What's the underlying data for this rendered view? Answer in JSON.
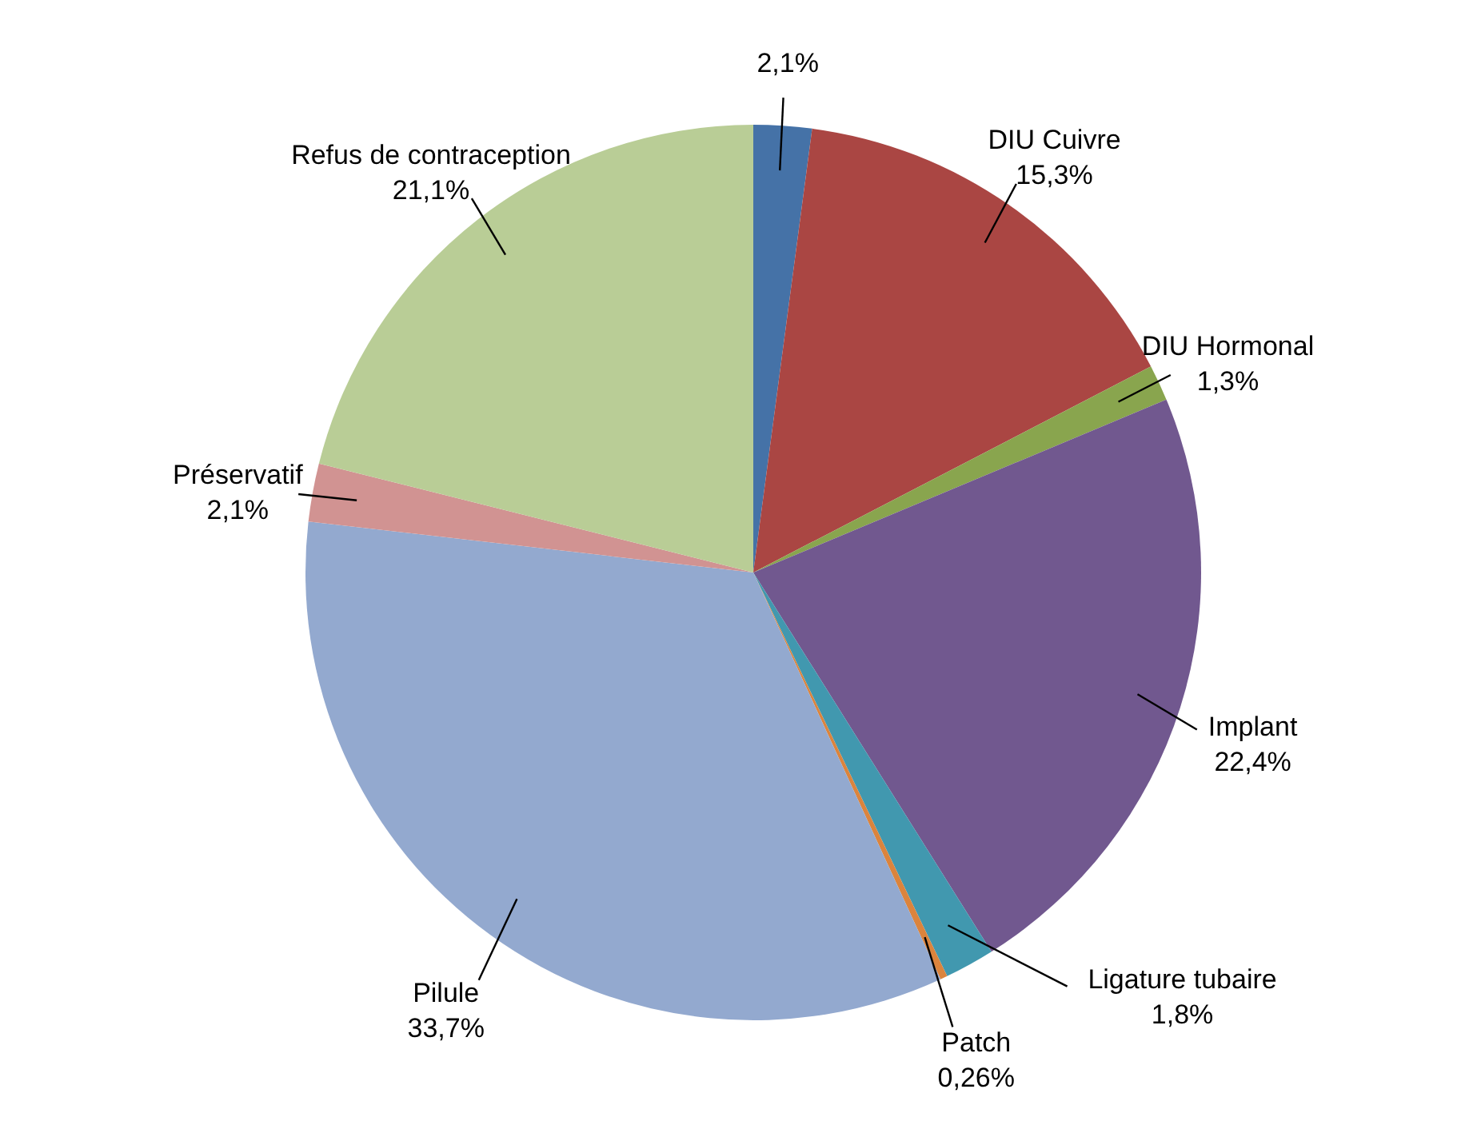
{
  "chart_data": {
    "type": "pie",
    "categories": [
      null,
      "DIU  Cuivre",
      "DIU Hormonal",
      "Implant",
      "Ligature tubaire",
      "Patch",
      "Pilule",
      "Préservatif",
      "Refus de contraception"
    ],
    "values": [
      2.1,
      15.3,
      1.3,
      22.4,
      1.8,
      0.26,
      33.7,
      2.1,
      21.1
    ],
    "value_labels": [
      "2,1%",
      "15,3%",
      "1,3%",
      "22,4%",
      "1,8%",
      "0,26%",
      "33,7%",
      "2,1%",
      "21,1%"
    ],
    "colors": [
      "#4572a7",
      "#aa4643",
      "#89a54e",
      "#71588f",
      "#4198af",
      "#db843d",
      "#93a9cf",
      "#d19392",
      "#b9cd96"
    ]
  }
}
